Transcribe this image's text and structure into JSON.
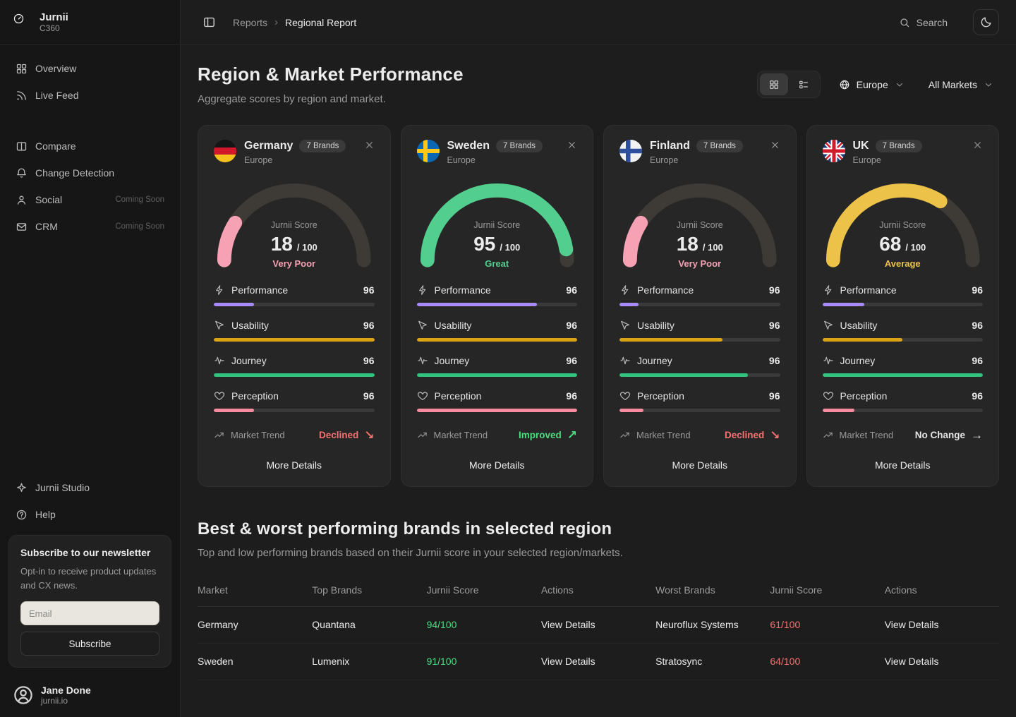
{
  "brand": {
    "name": "Jurnii",
    "product": "C360"
  },
  "sidebar": {
    "nav_primary": [
      {
        "label": "Overview",
        "icon": "grid-icon"
      },
      {
        "label": "Live Feed",
        "icon": "rss-icon"
      }
    ],
    "nav_secondary": [
      {
        "label": "Compare",
        "icon": "columns-icon"
      },
      {
        "label": "Change Detection",
        "icon": "bell-icon"
      },
      {
        "label": "Social",
        "icon": "social-icon",
        "badge": "Coming Soon"
      },
      {
        "label": "CRM",
        "icon": "mail-icon",
        "badge": "Coming Soon"
      }
    ],
    "nav_footer": [
      {
        "label": "Jurnii Studio",
        "icon": "sparkle-icon"
      },
      {
        "label": "Help",
        "icon": "help-icon"
      }
    ],
    "newsletter": {
      "title": "Subscribe to our newsletter",
      "body": "Opt-in to receive product updates and CX news.",
      "email_placeholder": "Email",
      "subscribe_label": "Subscribe"
    },
    "user": {
      "name": "Jane Done",
      "org": "jurnii.io"
    }
  },
  "header": {
    "breadcrumb": [
      "Reports",
      "Regional Report"
    ],
    "search_label": "Search"
  },
  "page": {
    "title": "Region & Market Performance",
    "subtitle": "Aggregate scores by region and market.",
    "region_filter": "Europe",
    "market_filter": "All Markets"
  },
  "cards": [
    {
      "country": "Germany",
      "flag": "germany",
      "brands_badge": "7 Brands",
      "region": "Europe",
      "score_title": "Jurnii Score",
      "score": 18,
      "score_suffix": "/ 100",
      "status": "Very Poor",
      "accent": "#f6a1b4",
      "metrics": [
        {
          "icon": "bolt-icon",
          "label": "Performance",
          "value": 96,
          "fill": 25,
          "color": "#a78bfa"
        },
        {
          "icon": "pointer-icon",
          "label": "Usability",
          "value": 96,
          "fill": 100,
          "color": "#dba414"
        },
        {
          "icon": "wave-icon",
          "label": "Journey",
          "value": 96,
          "fill": 100,
          "color": "#31c47e"
        },
        {
          "icon": "heart-icon",
          "label": "Perception",
          "value": 96,
          "fill": 25,
          "color": "#f88ba0"
        }
      ],
      "trend_label": "Market Trend",
      "trend_value": "Declined",
      "trend_direction": "down",
      "more_label": "More Details"
    },
    {
      "country": "Sweden",
      "flag": "sweden",
      "brands_badge": "7 Brands",
      "region": "Europe",
      "score_title": "Jurnii Score",
      "score": 95,
      "score_suffix": "/ 100",
      "status": "Great",
      "accent": "#52cf8e",
      "metrics": [
        {
          "icon": "bolt-icon",
          "label": "Performance",
          "value": 96,
          "fill": 75,
          "color": "#a78bfa"
        },
        {
          "icon": "pointer-icon",
          "label": "Usability",
          "value": 96,
          "fill": 100,
          "color": "#dba414"
        },
        {
          "icon": "wave-icon",
          "label": "Journey",
          "value": 96,
          "fill": 100,
          "color": "#31c47e"
        },
        {
          "icon": "heart-icon",
          "label": "Perception",
          "value": 96,
          "fill": 100,
          "color": "#f88ba0"
        }
      ],
      "trend_label": "Market Trend",
      "trend_value": "Improved",
      "trend_direction": "up",
      "more_label": "More Details"
    },
    {
      "country": "Finland",
      "flag": "finland",
      "brands_badge": "7 Brands",
      "region": "Europe",
      "score_title": "Jurnii Score",
      "score": 18,
      "score_suffix": "/ 100",
      "status": "Very Poor",
      "accent": "#f6a1b4",
      "metrics": [
        {
          "icon": "bolt-icon",
          "label": "Performance",
          "value": 96,
          "fill": 12,
          "color": "#a78bfa"
        },
        {
          "icon": "pointer-icon",
          "label": "Usability",
          "value": 96,
          "fill": 64,
          "color": "#dba414"
        },
        {
          "icon": "wave-icon",
          "label": "Journey",
          "value": 96,
          "fill": 80,
          "color": "#31c47e"
        },
        {
          "icon": "heart-icon",
          "label": "Perception",
          "value": 96,
          "fill": 15,
          "color": "#f88ba0"
        }
      ],
      "trend_label": "Market Trend",
      "trend_value": "Declined",
      "trend_direction": "down",
      "more_label": "More Details"
    },
    {
      "country": "UK",
      "flag": "uk",
      "brands_badge": "7 Brands",
      "region": "Europe",
      "score_title": "Jurnii Score",
      "score": 68,
      "score_suffix": "/ 100",
      "status": "Average",
      "accent": "#edc249",
      "metrics": [
        {
          "icon": "bolt-icon",
          "label": "Performance",
          "value": 96,
          "fill": 26,
          "color": "#a78bfa"
        },
        {
          "icon": "pointer-icon",
          "label": "Usability",
          "value": 96,
          "fill": 50,
          "color": "#dba414"
        },
        {
          "icon": "wave-icon",
          "label": "Journey",
          "value": 96,
          "fill": 100,
          "color": "#31c47e"
        },
        {
          "icon": "heart-icon",
          "label": "Perception",
          "value": 96,
          "fill": 20,
          "color": "#f88ba0"
        }
      ],
      "trend_label": "Market Trend",
      "trend_value": "No Change",
      "trend_direction": "flat",
      "more_label": "More Details"
    }
  ],
  "brands_section": {
    "title": "Best & worst performing brands in selected region",
    "subtitle": "Top and low performing brands based on their Jurnii score in your selected region/markets.",
    "columns": [
      "Market",
      "Top Brands",
      "Jurnii Score",
      "Actions",
      "Worst Brands",
      "Jurnii Score",
      "Actions"
    ],
    "rows": [
      {
        "market": "Germany",
        "top_brand": "Quantana",
        "top_score": "94/100",
        "top_action": "View Details",
        "worst_brand": "Neuroflux Systems",
        "worst_score": "61/100",
        "worst_action": "View Details"
      },
      {
        "market": "Sweden",
        "top_brand": "Lumenix",
        "top_score": "91/100",
        "top_action": "View Details",
        "worst_brand": "Stratosync",
        "worst_score": "64/100",
        "worst_action": "View Details"
      }
    ]
  },
  "colors": {
    "positive": "#4ade80",
    "negative": "#f87171",
    "neutral": "#e5e5e5",
    "gauge_track": "#3e3a36"
  }
}
